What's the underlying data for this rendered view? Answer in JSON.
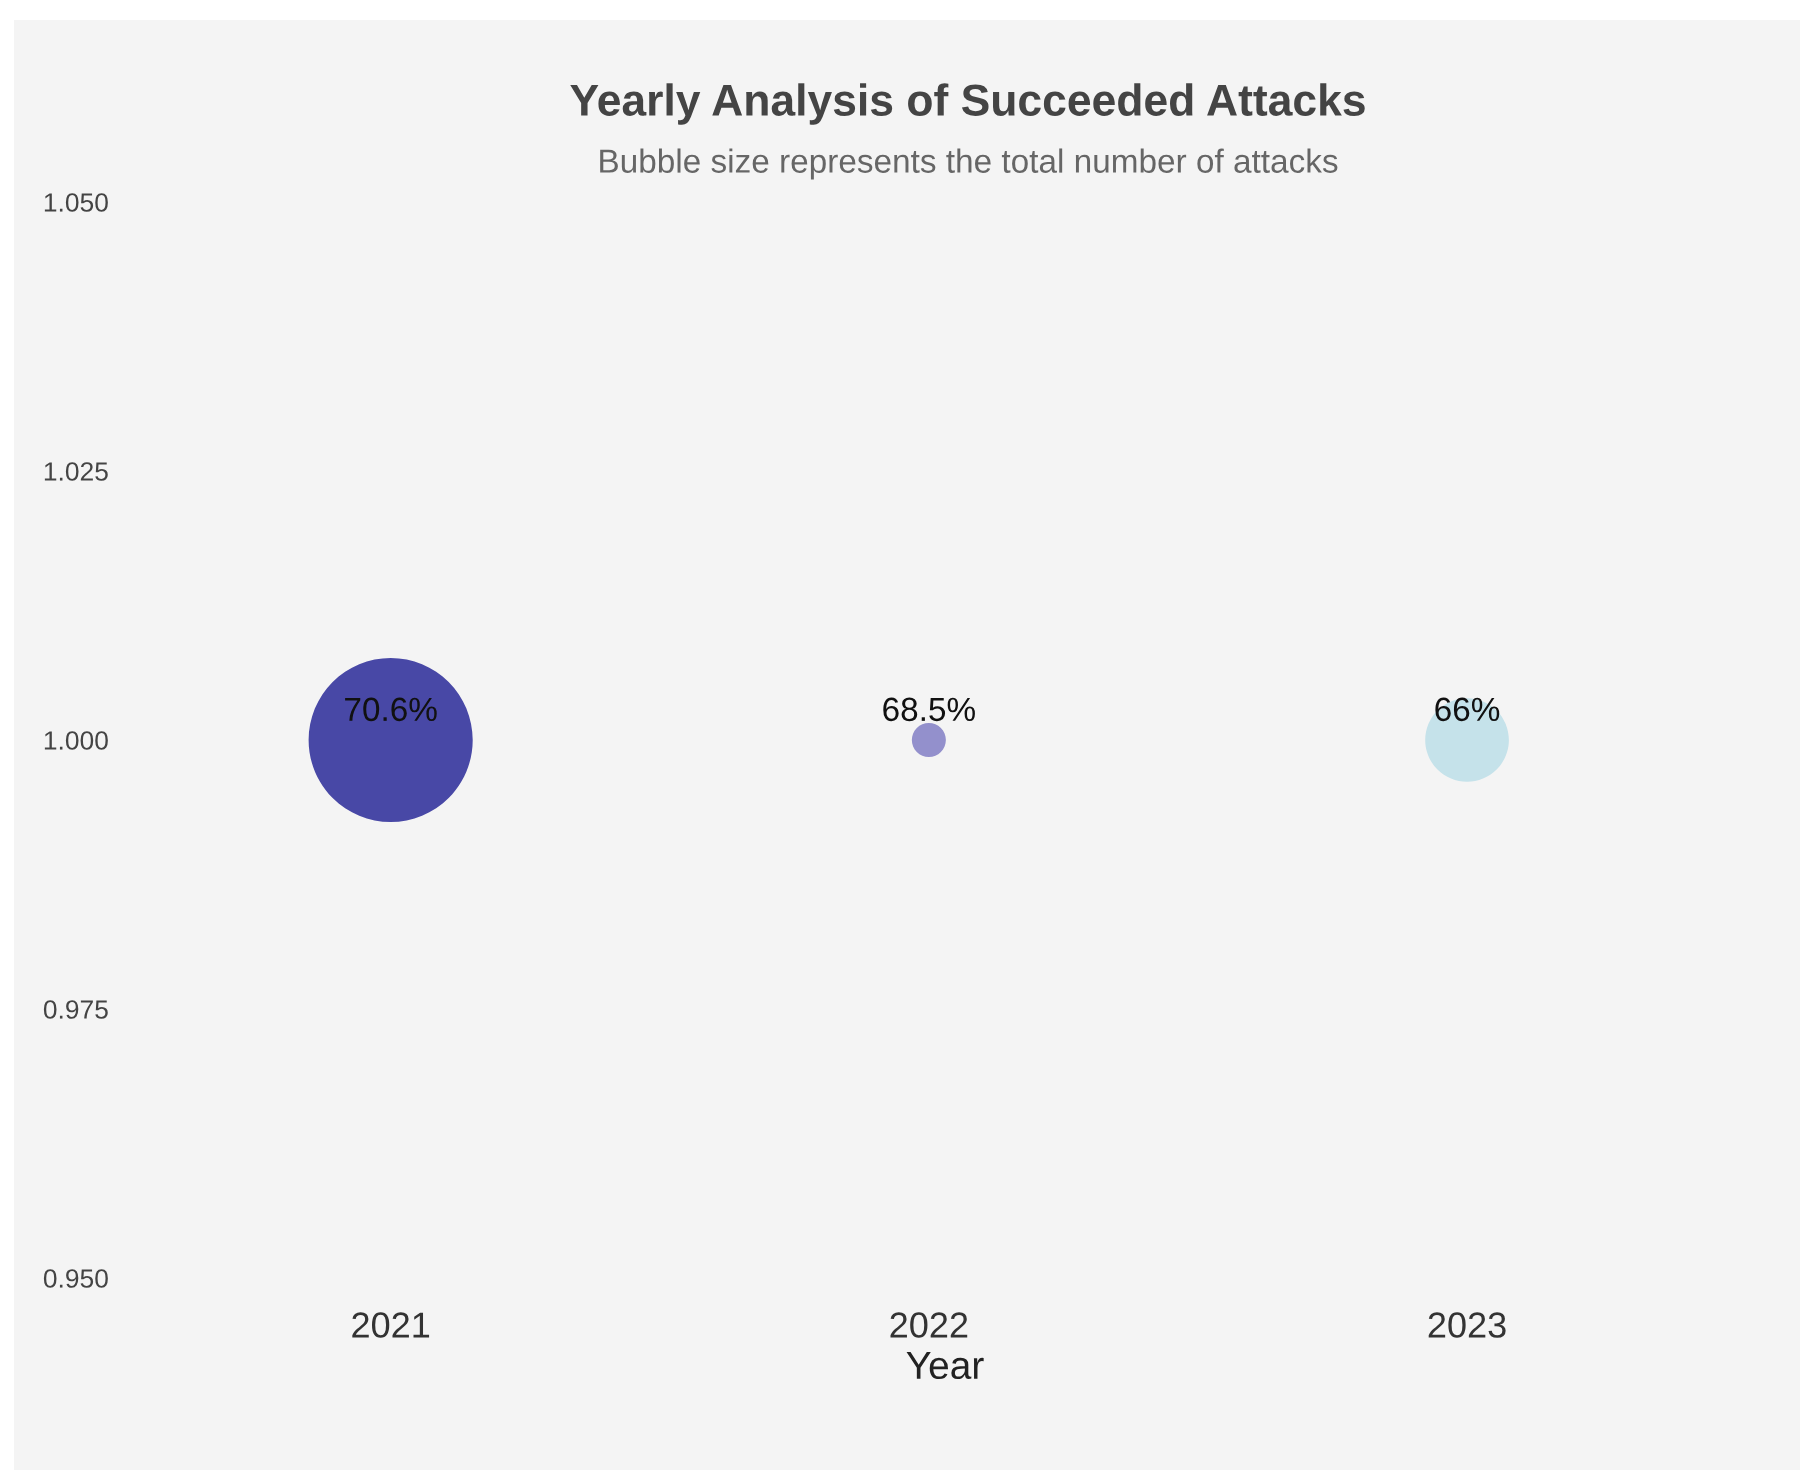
{
  "chart_data": {
    "type": "bubble",
    "title": "Yearly Analysis of Succeeded Attacks",
    "subtitle": "Bubble size represents the total number of attacks",
    "xlabel": "Year",
    "categories": [
      "2021",
      "2022",
      "2023"
    ],
    "series": [
      {
        "values": [
          1.0,
          1.0,
          1.0
        ],
        "sizes": [
          1,
          0.043,
          0.26
        ],
        "colors": [
          "#4848a6",
          "#9390cc",
          "#c5e2ea"
        ]
      }
    ],
    "annotations": [
      {
        "text": "70.6%",
        "x": "2021",
        "y": 1.0
      },
      {
        "text": "68.5%",
        "x": "2022",
        "y": 1.0
      },
      {
        "text": "66%",
        "x": "2023",
        "y": 1.0
      }
    ],
    "ylim": [
      0.95,
      1.05
    ],
    "yticks": [
      {
        "value": 0.95,
        "label": "0.950"
      },
      {
        "value": 0.975,
        "label": "0.975"
      },
      {
        "value": 1.0,
        "label": "1.000"
      },
      {
        "value": 1.025,
        "label": "1.025"
      },
      {
        "value": 1.05,
        "label": "1.050"
      }
    ],
    "grid": false,
    "legend": false
  }
}
